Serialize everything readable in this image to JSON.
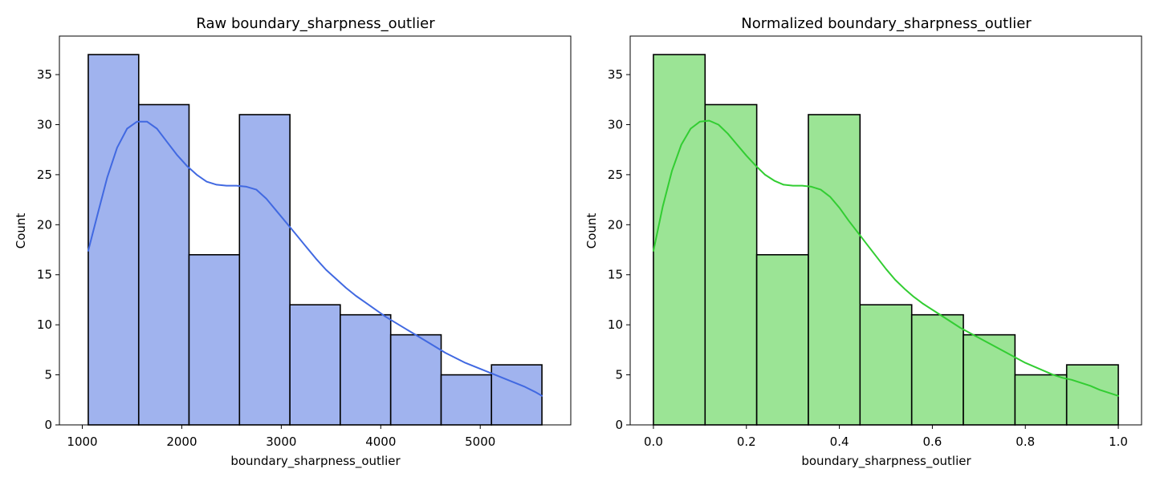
{
  "chart_data": [
    {
      "type": "bar",
      "title": "Raw boundary_sharpness_outlier",
      "xlabel": "boundary_sharpness_outlier",
      "ylabel": "Count",
      "bin_edges": [
        1060,
        1567,
        2073,
        2580,
        3087,
        3593,
        4100,
        4607,
        5113,
        5620
      ],
      "values": [
        37,
        32,
        17,
        31,
        12,
        11,
        9,
        5,
        6
      ],
      "kde": {
        "x": [
          1060,
          1150,
          1250,
          1350,
          1450,
          1550,
          1650,
          1750,
          1850,
          1950,
          2050,
          2150,
          2250,
          2350,
          2450,
          2550,
          2650,
          2750,
          2850,
          2950,
          3050,
          3150,
          3250,
          3350,
          3450,
          3550,
          3650,
          3750,
          3850,
          3950,
          4050,
          4150,
          4250,
          4350,
          4450,
          4550,
          4650,
          4750,
          4850,
          4950,
          5050,
          5150,
          5250,
          5350,
          5450,
          5550,
          5620
        ],
        "y": [
          17.4,
          20.9,
          24.7,
          27.7,
          29.6,
          30.3,
          30.3,
          29.6,
          28.3,
          27.0,
          25.9,
          25.0,
          24.3,
          24.0,
          23.9,
          23.9,
          23.8,
          23.5,
          22.6,
          21.4,
          20.2,
          19.0,
          17.8,
          16.6,
          15.5,
          14.6,
          13.7,
          12.9,
          12.2,
          11.5,
          10.8,
          10.2,
          9.6,
          9.0,
          8.4,
          7.8,
          7.2,
          6.7,
          6.2,
          5.8,
          5.4,
          5.0,
          4.6,
          4.2,
          3.8,
          3.3,
          2.9
        ]
      },
      "xticks": [
        1000,
        2000,
        3000,
        4000,
        5000
      ],
      "xtick_labels": [
        "1000",
        "2000",
        "3000",
        "4000",
        "5000"
      ],
      "yticks": [
        0,
        5,
        10,
        15,
        20,
        25,
        30,
        35
      ],
      "ytick_labels": [
        "0",
        "5",
        "10",
        "15",
        "20",
        "25",
        "30",
        "35"
      ],
      "xlim": [
        770,
        5910
      ],
      "ylim": [
        0,
        38.85
      ],
      "colors": {
        "bar": "#a0b3ee",
        "edge": "#000000",
        "kde": "#4169e1"
      },
      "grid": false
    },
    {
      "type": "bar",
      "title": "Normalized boundary_sharpness_outlier",
      "xlabel": "boundary_sharpness_outlier",
      "ylabel": "Count",
      "bin_edges": [
        0.0,
        0.1111,
        0.2222,
        0.3333,
        0.4444,
        0.5556,
        0.6667,
        0.7778,
        0.8889,
        1.0
      ],
      "values": [
        37,
        32,
        17,
        31,
        12,
        11,
        9,
        5,
        6
      ],
      "kde": {
        "x": [
          0.0,
          0.02,
          0.04,
          0.06,
          0.08,
          0.1,
          0.12,
          0.14,
          0.16,
          0.18,
          0.2,
          0.22,
          0.24,
          0.26,
          0.28,
          0.3,
          0.32,
          0.34,
          0.36,
          0.38,
          0.4,
          0.42,
          0.44,
          0.46,
          0.48,
          0.5,
          0.52,
          0.54,
          0.56,
          0.58,
          0.6,
          0.62,
          0.64,
          0.66,
          0.68,
          0.7,
          0.72,
          0.74,
          0.76,
          0.78,
          0.8,
          0.82,
          0.84,
          0.86,
          0.88,
          0.9,
          0.92,
          0.94,
          0.96,
          0.98,
          1.0
        ],
        "y": [
          17.4,
          21.8,
          25.4,
          28.0,
          29.6,
          30.3,
          30.4,
          30.0,
          29.1,
          28.0,
          26.9,
          25.9,
          25.0,
          24.4,
          24.0,
          23.9,
          23.9,
          23.8,
          23.5,
          22.8,
          21.7,
          20.4,
          19.2,
          18.0,
          16.8,
          15.6,
          14.5,
          13.6,
          12.8,
          12.1,
          11.5,
          10.9,
          10.3,
          9.7,
          9.2,
          8.7,
          8.2,
          7.7,
          7.2,
          6.7,
          6.2,
          5.8,
          5.4,
          5.0,
          4.7,
          4.5,
          4.2,
          3.9,
          3.5,
          3.2,
          2.9
        ]
      },
      "xticks": [
        0.0,
        0.2,
        0.4,
        0.6,
        0.8,
        1.0
      ],
      "xtick_labels": [
        "0.0",
        "0.2",
        "0.4",
        "0.6",
        "0.8",
        "1.0"
      ],
      "yticks": [
        0,
        5,
        10,
        15,
        20,
        25,
        30,
        35
      ],
      "ytick_labels": [
        "0",
        "5",
        "10",
        "15",
        "20",
        "25",
        "30",
        "35"
      ],
      "xlim": [
        -0.05,
        1.05
      ],
      "ylim": [
        0,
        38.85
      ],
      "colors": {
        "bar": "#9be495",
        "edge": "#000000",
        "kde": "#32cd32"
      },
      "grid": false
    }
  ]
}
